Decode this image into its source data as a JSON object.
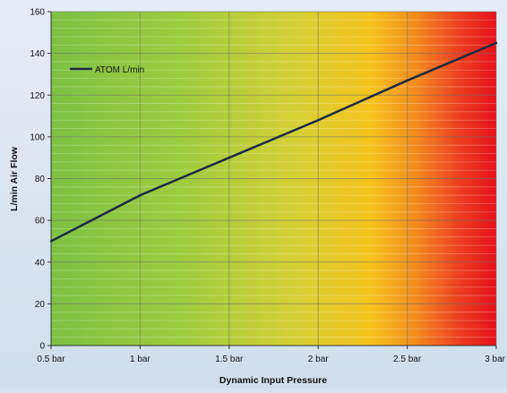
{
  "chart_data": {
    "type": "line",
    "title": "",
    "xlabel": "Dynamic Input Pressure",
    "ylabel": "L/min Air Flow",
    "categories": [
      "0.5 bar",
      "1 bar",
      "1.5 bar",
      "2 bar",
      "2.5 bar",
      "3 bar"
    ],
    "x": [
      0.5,
      1.0,
      1.5,
      2.0,
      2.5,
      3.0
    ],
    "xlim": [
      0.5,
      3.0
    ],
    "ylim": [
      0,
      160
    ],
    "yticks": [
      "0",
      "20",
      "40",
      "60",
      "80",
      "100",
      "120",
      "140",
      "160"
    ],
    "grid": true,
    "legend_position": "top-left",
    "series": [
      {
        "name": "ATOM L/min",
        "color": "#1c2a44",
        "values": [
          50,
          72,
          90,
          108,
          127,
          145
        ]
      }
    ],
    "background_gradient_colors": [
      "#7ac142",
      "#b9d23c",
      "#f6c21c",
      "#ef5a21",
      "#e8121c"
    ]
  }
}
